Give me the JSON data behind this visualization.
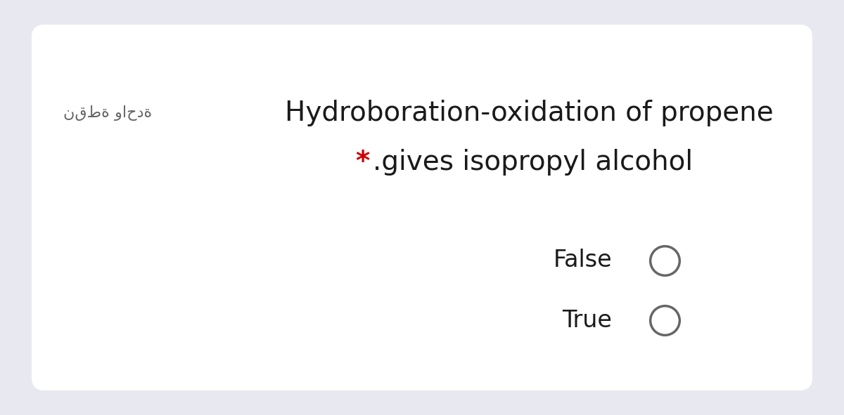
{
  "background_color": "#e8e8f0",
  "card_color": "#ffffff",
  "arabic_text": "نقطة واحدة",
  "arabic_color": "#666666",
  "arabic_fontsize": 16,
  "title_line1": "Hydroboration-oxidation of propene",
  "title_color": "#1a1a1a",
  "title_fontsize": 28,
  "subtitle_star": "*",
  "star_color": "#cc0000",
  "subtitle_text": ".gives isopropyl alcohol",
  "subtitle_color": "#1a1a1a",
  "subtitle_fontsize": 28,
  "option1": "False",
  "option2": "True",
  "option_fontsize": 24,
  "option_color": "#1a1a1a",
  "circle_edgecolor": "#666666",
  "circle_facecolor": "#ffffff",
  "circle_linewidth": 2.5,
  "circle_size": 900
}
